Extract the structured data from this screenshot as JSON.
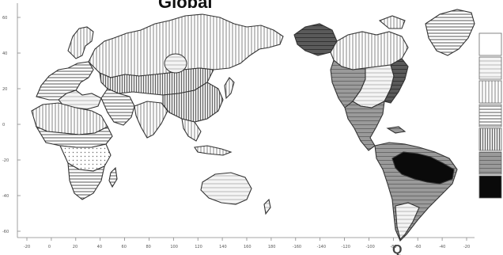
{
  "map": {
    "title": "Global",
    "title_fragment_right": "Q",
    "projection": "Pacific-centered world map",
    "pattern_ids": [
      "p-horiz",
      "p-vert",
      "p-vert-dense",
      "p-dots",
      "p-horiz-light",
      "p-grey",
      "p-dark",
      "p-black"
    ],
    "legend": {
      "classes": [
        {
          "pattern": "p-white"
        },
        {
          "pattern": "p-horiz-light"
        },
        {
          "pattern": "p-vert"
        },
        {
          "pattern": "p-horiz"
        },
        {
          "pattern": "p-vert-dense"
        },
        {
          "pattern": "p-grey"
        },
        {
          "pattern": "p-black"
        }
      ]
    },
    "y_ticks": [
      "60",
      "40",
      "20",
      "0",
      "-20",
      "-40",
      "-60"
    ],
    "x_ticks": [
      "-20",
      "0",
      "20",
      "40",
      "60",
      "80",
      "100",
      "120",
      "140",
      "160",
      "180",
      "-160",
      "-140",
      "-120",
      "-100",
      "-80",
      "-60",
      "-40",
      "-20"
    ]
  }
}
